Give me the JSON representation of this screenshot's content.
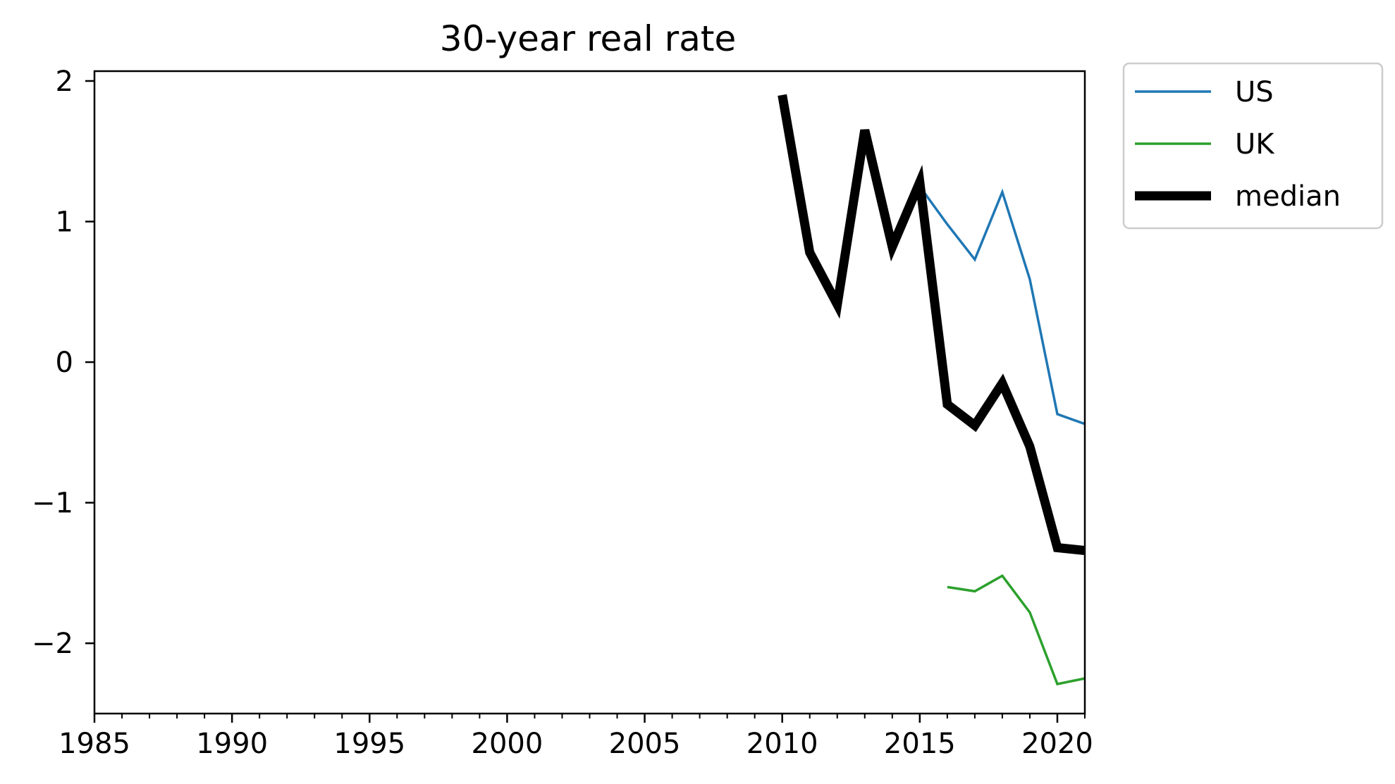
{
  "chart_data": {
    "type": "line",
    "title": "30-year real rate",
    "xlabel": "",
    "ylabel": "",
    "xlim": [
      1985,
      2021
    ],
    "ylim": [
      -2.5,
      2.07
    ],
    "x_ticks": [
      1985,
      1990,
      1995,
      2000,
      2005,
      2010,
      2015,
      2020
    ],
    "x_tick_labels": [
      "1985",
      "1990",
      "1995",
      "2000",
      "2005",
      "2010",
      "2015",
      "2020"
    ],
    "x_minor_step": 1,
    "y_ticks": [
      2,
      1,
      0,
      -1,
      -2
    ],
    "y_tick_labels": [
      "2",
      "1",
      "0",
      "−1",
      "−2"
    ],
    "grid": false,
    "legend_position": "outside-top-right",
    "series": [
      {
        "name": "US",
        "color": "#1f77b4",
        "width": 3.5,
        "x": [
          2015,
          2016,
          2017,
          2018,
          2019,
          2020,
          2021
        ],
        "y": [
          1.25,
          0.98,
          0.73,
          1.21,
          0.59,
          -0.37,
          -0.44
        ]
      },
      {
        "name": "UK",
        "color": "#2ca02c",
        "width": 3.5,
        "x": [
          2016,
          2017,
          2018,
          2019,
          2020,
          2021
        ],
        "y": [
          -1.6,
          -1.63,
          -1.52,
          -1.78,
          -2.29,
          -2.25
        ]
      },
      {
        "name": "median",
        "color": "#000000",
        "width": 13,
        "x": [
          2010,
          2011,
          2012,
          2013,
          2014,
          2015,
          2016,
          2017,
          2018,
          2019,
          2020,
          2021
        ],
        "y": [
          1.9,
          0.78,
          0.41,
          1.65,
          0.82,
          1.28,
          -0.3,
          -0.45,
          -0.15,
          -0.6,
          -1.32,
          -1.34
        ]
      }
    ]
  }
}
